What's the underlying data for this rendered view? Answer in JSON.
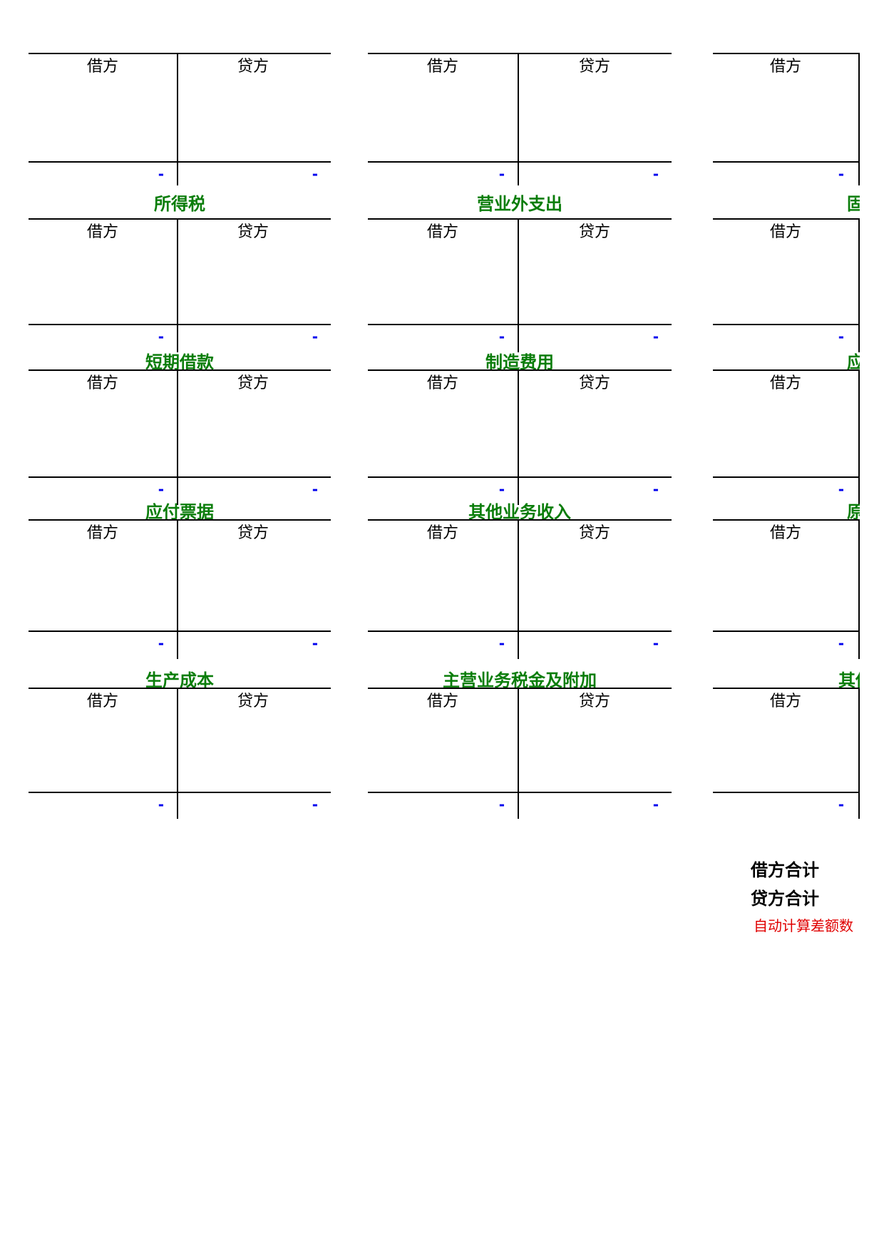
{
  "accounts": [
    [
      {
        "title": "",
        "debit_label": "借方",
        "credit_label": "贷方",
        "debit_total": "-",
        "credit_total": "-"
      },
      {
        "title": "",
        "debit_label": "借方",
        "credit_label": "贷方",
        "debit_total": "-",
        "credit_total": "-"
      },
      {
        "title": "",
        "debit_label": "借方",
        "credit_label": "",
        "debit_total": "-",
        "credit_total": ""
      }
    ],
    [
      {
        "title": "所得税",
        "debit_label": "借方",
        "credit_label": "贷方",
        "debit_total": "-",
        "credit_total": "-"
      },
      {
        "title": "营业外支出",
        "debit_label": "借方",
        "credit_label": "贷方",
        "debit_total": "-",
        "credit_total": "-"
      },
      {
        "title": "固定",
        "debit_label": "借方",
        "credit_label": "",
        "debit_total": "-",
        "credit_total": ""
      }
    ],
    [
      {
        "title": "短期借款",
        "debit_label": "借方",
        "credit_label": "贷方",
        "debit_total": "-",
        "credit_total": "-"
      },
      {
        "title": "制造费用",
        "debit_label": "借方",
        "credit_label": "贷方",
        "debit_total": "-",
        "credit_total": "-"
      },
      {
        "title": "应收",
        "debit_label": "借方",
        "credit_label": "",
        "debit_total": "-",
        "credit_total": ""
      }
    ],
    [
      {
        "title": "应付票据",
        "debit_label": "借方",
        "credit_label": "贷方",
        "debit_total": "-",
        "credit_total": "-"
      },
      {
        "title": "其他业务收入",
        "debit_label": "借方",
        "credit_label": "贷方",
        "debit_total": "-",
        "credit_total": "-"
      },
      {
        "title": "原材",
        "debit_label": "借方",
        "credit_label": "",
        "debit_total": "-",
        "credit_total": ""
      }
    ],
    [
      {
        "title": "生产成本",
        "debit_label": "借方",
        "credit_label": "贷方",
        "debit_total": "-",
        "credit_total": "-"
      },
      {
        "title": "主营业务税金及附加",
        "debit_label": "借方",
        "credit_label": "贷方",
        "debit_total": "-",
        "credit_total": "-"
      },
      {
        "title": "其他货",
        "debit_label": "借方",
        "credit_label": "",
        "debit_total": "-",
        "credit_total": ""
      }
    ]
  ],
  "totals": {
    "debit_total_label": "借方合计",
    "credit_total_label": "贷方合计",
    "auto_calc_note": "自动计算差额数"
  },
  "colors": {
    "title": "#0a7d0a",
    "total_dash": "#0000ee",
    "note": "#e00000",
    "line": "#000000"
  }
}
